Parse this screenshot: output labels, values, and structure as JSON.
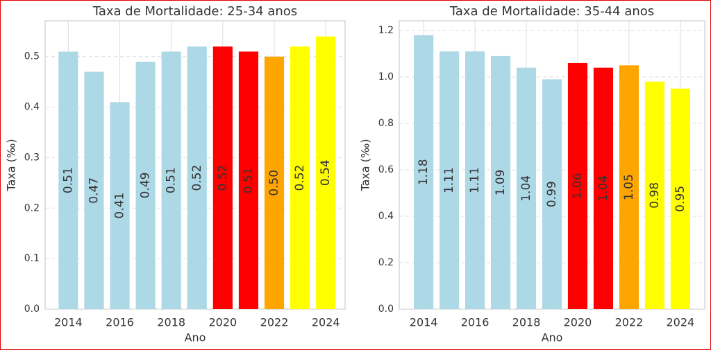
{
  "chart_data": [
    {
      "type": "bar",
      "title": "Taxa de Mortalidade: 25-34 anos",
      "x_label": "Ano",
      "y_label": "Taxa (‰)",
      "x": [
        2014,
        2015,
        2016,
        2017,
        2018,
        2019,
        2020,
        2021,
        2022,
        2023,
        2024
      ],
      "values": [
        0.51,
        0.47,
        0.41,
        0.49,
        0.51,
        0.52,
        0.52,
        0.51,
        0.5,
        0.52,
        0.54
      ],
      "value_labels": [
        "0.51",
        "0.47",
        "0.41",
        "0.49",
        "0.51",
        "0.52",
        "0.52",
        "0.51",
        "0.50",
        "0.52",
        "0.54"
      ],
      "colors": [
        "#add8e6",
        "#add8e6",
        "#add8e6",
        "#add8e6",
        "#add8e6",
        "#add8e6",
        "#ff0000",
        "#ff0000",
        "#ffa500",
        "#ffff00",
        "#ffff00"
      ],
      "xlim": [
        2013.1,
        2024.75
      ],
      "xticks": [
        2014,
        2016,
        2018,
        2020,
        2022,
        2024
      ],
      "ylim": [
        0,
        0.571
      ],
      "yticks": [
        {
          "value": 0,
          "label": "0.0"
        },
        0.1,
        0.2,
        0.3,
        0.4,
        0.5
      ],
      "grid": true
    },
    {
      "type": "bar",
      "title": "Taxa de Mortalidade: 35-44 anos",
      "x_label": "Ano",
      "y_label": "Taxa (‰)",
      "x": [
        2014,
        2015,
        2016,
        2017,
        2018,
        2019,
        2020,
        2021,
        2022,
        2023,
        2024
      ],
      "values": [
        1.18,
        1.11,
        1.11,
        1.09,
        1.04,
        0.99,
        1.06,
        1.04,
        1.05,
        0.98,
        0.95
      ],
      "colors": [
        "#add8e6",
        "#add8e6",
        "#add8e6",
        "#add8e6",
        "#add8e6",
        "#add8e6",
        "#ff0000",
        "#ff0000",
        "#ffa500",
        "#ffff00",
        "#ffff00"
      ],
      "xlim": [
        2013.05,
        2024.95
      ],
      "xticks": [
        2014,
        2016,
        2018,
        2020,
        2022,
        2024
      ],
      "ylim": [
        0,
        1.242
      ],
      "yticks": [
        {
          "value": 0,
          "label": "0.0"
        },
        0.2,
        0.4,
        0.6,
        0.8,
        {
          "value": 1,
          "label": "1.0"
        },
        1.2
      ],
      "grid": true
    }
  ]
}
